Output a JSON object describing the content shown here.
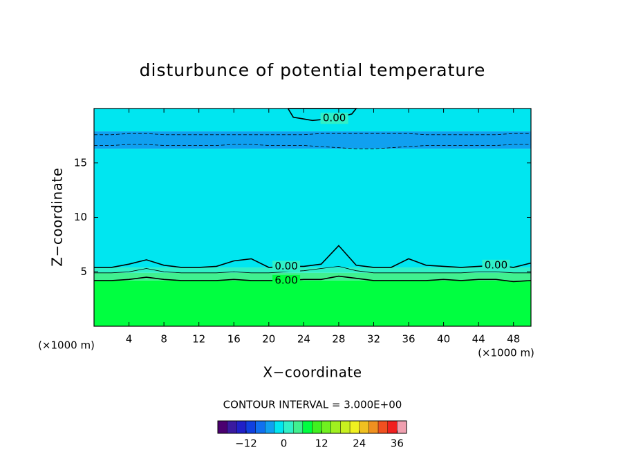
{
  "chart_data": {
    "type": "contour",
    "title": "disturbunce of potential temperature",
    "x_label": "X−coordinate",
    "y_label": "Z−coordinate",
    "x_unit_label": "(×1000 m)",
    "y_unit_label": "(×1000 m)",
    "interval_label": "CONTOUR INTERVAL = 3.000E+00",
    "xlim": [
      0,
      50
    ],
    "xticks": [
      4,
      8,
      12,
      16,
      20,
      24,
      28,
      32,
      36,
      40,
      44,
      48
    ],
    "ylim": [
      0,
      20
    ],
    "yticks": [
      5,
      10,
      15
    ],
    "field": {
      "z_edges": [
        0,
        4.2,
        4.9,
        5.4,
        16.3,
        17.9,
        20
      ],
      "values": [
        7.5,
        4.5,
        1.5,
        -1.5,
        -4.5,
        -1.5
      ]
    },
    "contours": [
      {
        "level": 6,
        "level_label": "6.00",
        "x": [
          0,
          2,
          4,
          6,
          8,
          10,
          12,
          14,
          16,
          18,
          20,
          22,
          24,
          26,
          28,
          30,
          32,
          34,
          36,
          38,
          40,
          42,
          44,
          46,
          48,
          50
        ],
        "z": [
          4.2,
          4.2,
          4.3,
          4.5,
          4.3,
          4.2,
          4.2,
          4.2,
          4.3,
          4.2,
          4.2,
          4.2,
          4.3,
          4.3,
          4.6,
          4.4,
          4.2,
          4.2,
          4.2,
          4.2,
          4.3,
          4.2,
          4.3,
          4.3,
          4.1,
          4.2
        ]
      },
      {
        "level": 3,
        "x": [
          0,
          2,
          4,
          6,
          8,
          10,
          12,
          14,
          16,
          18,
          20,
          22,
          24,
          26,
          28,
          30,
          32,
          34,
          36,
          38,
          40,
          42,
          44,
          46,
          48,
          50
        ],
        "z": [
          4.9,
          4.9,
          5.0,
          5.3,
          5.0,
          4.9,
          4.9,
          4.9,
          5.0,
          4.9,
          4.9,
          5.0,
          5.1,
          5.3,
          5.5,
          5.1,
          4.9,
          4.9,
          4.9,
          4.9,
          4.9,
          4.9,
          5.0,
          5.0,
          4.9,
          4.9
        ]
      },
      {
        "level": 0,
        "level_label": "0.00",
        "x": [
          0,
          2,
          4,
          6,
          8,
          10,
          12,
          14,
          16,
          18,
          20,
          22,
          24,
          26,
          28,
          30,
          32,
          34,
          36,
          38,
          40,
          42,
          44,
          46,
          48,
          50
        ],
        "z": [
          5.4,
          5.4,
          5.7,
          6.1,
          5.6,
          5.4,
          5.4,
          5.5,
          6.0,
          6.2,
          5.4,
          5.5,
          5.5,
          5.7,
          7.4,
          5.6,
          5.4,
          5.4,
          6.2,
          5.6,
          5.5,
          5.4,
          5.5,
          5.6,
          5.4,
          5.8
        ]
      },
      {
        "level": -3,
        "x": [
          0,
          2,
          4,
          6,
          8,
          10,
          12,
          14,
          16,
          18,
          20,
          22,
          24,
          26,
          28,
          30,
          32,
          34,
          36,
          38,
          40,
          42,
          44,
          46,
          48,
          50
        ],
        "z": [
          17.6,
          17.6,
          17.7,
          17.7,
          17.6,
          17.6,
          17.6,
          17.6,
          17.6,
          17.6,
          17.6,
          17.6,
          17.6,
          17.7,
          17.7,
          17.7,
          17.7,
          17.7,
          17.7,
          17.6,
          17.6,
          17.6,
          17.6,
          17.6,
          17.7,
          17.7
        ]
      },
      {
        "level": -3,
        "x": [
          0,
          2,
          4,
          6,
          8,
          10,
          12,
          14,
          16,
          18,
          20,
          22,
          24,
          26,
          28,
          30,
          32,
          34,
          36,
          38,
          40,
          42,
          44,
          46,
          48,
          50
        ],
        "z": [
          16.6,
          16.6,
          16.7,
          16.7,
          16.6,
          16.6,
          16.6,
          16.6,
          16.7,
          16.7,
          16.6,
          16.6,
          16.6,
          16.5,
          16.4,
          16.3,
          16.3,
          16.4,
          16.5,
          16.6,
          16.6,
          16.6,
          16.6,
          16.6,
          16.7,
          16.7
        ]
      },
      {
        "level": 0,
        "level_label": "0.00",
        "x": [
          22.2,
          22.8,
          25,
          27.5,
          29.5,
          30,
          29,
          26,
          23,
          22.2
        ],
        "z": [
          20,
          19.2,
          18.9,
          19.1,
          19.5,
          20,
          20,
          20,
          20,
          20
        ]
      }
    ],
    "colorbar": {
      "levels": [
        -21,
        -18,
        -15,
        -12,
        -9,
        -6,
        -3,
        0,
        3,
        6,
        9,
        12,
        15,
        18,
        21,
        24,
        27,
        30,
        33,
        36,
        39
      ],
      "colors": [
        "#4b0070",
        "#3a1aa0",
        "#2020c8",
        "#1040e0",
        "#1070f0",
        "#10a0f0",
        "#00e6f0",
        "#30f0c8",
        "#40f090",
        "#00ff40",
        "#40f020",
        "#70f020",
        "#a0f020",
        "#c8f020",
        "#f0f020",
        "#f0c020",
        "#f09020",
        "#f05020",
        "#f02020",
        "#f0a0b0"
      ],
      "ticks": [
        {
          "value": -12,
          "label": "−12"
        },
        0,
        12,
        24,
        36
      ]
    }
  }
}
